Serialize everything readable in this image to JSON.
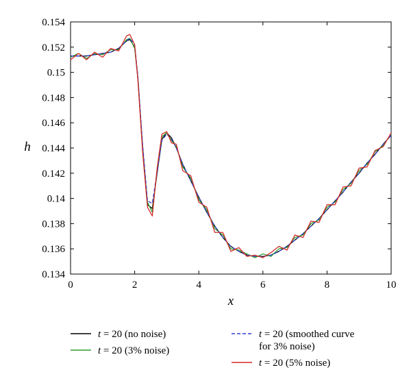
{
  "chart_data": {
    "type": "line",
    "xlabel": "x",
    "ylabel": "h",
    "xlim": [
      0,
      10
    ],
    "ylim": [
      0.134,
      0.154
    ],
    "x_ticks": [
      0,
      2,
      4,
      6,
      8,
      10
    ],
    "x_tick_labels": [
      "0",
      "2",
      "4",
      "6",
      "8",
      "10"
    ],
    "y_ticks": [
      0.134,
      0.136,
      0.138,
      0.14,
      0.142,
      0.144,
      0.146,
      0.148,
      0.15,
      0.152,
      0.154
    ],
    "y_tick_labels": [
      "0.134",
      "0.136",
      "0.138",
      "0.14",
      "0.142",
      "0.144",
      "0.146",
      "0.148",
      "0.15",
      "0.152",
      "0.154"
    ],
    "grid": false,
    "legend_position": "bottom",
    "x": [
      0,
      0.25,
      0.5,
      0.75,
      1.0,
      1.25,
      1.5,
      1.75,
      1.85,
      2.0,
      2.1,
      2.25,
      2.4,
      2.55,
      2.7,
      2.85,
      3.0,
      3.15,
      3.3,
      3.5,
      3.75,
      4.0,
      4.25,
      4.5,
      4.75,
      5.0,
      5.25,
      5.5,
      5.75,
      6.0,
      6.25,
      6.5,
      6.75,
      7.0,
      7.25,
      7.5,
      7.75,
      8.0,
      8.25,
      8.5,
      8.75,
      9.0,
      9.25,
      9.5,
      9.75,
      10.0
    ],
    "series": [
      {
        "name": "t = 20 (no noise)",
        "color": "#000000",
        "style": "solid",
        "values": [
          0.1513,
          0.1513,
          0.1513,
          0.1514,
          0.1515,
          0.1516,
          0.1519,
          0.1525,
          0.1526,
          0.152,
          0.1495,
          0.144,
          0.1395,
          0.1392,
          0.142,
          0.1447,
          0.1452,
          0.1448,
          0.144,
          0.1427,
          0.1414,
          0.1401,
          0.1389,
          0.1378,
          0.1369,
          0.1362,
          0.1358,
          0.1355,
          0.1354,
          0.1354,
          0.1355,
          0.1358,
          0.1362,
          0.1367,
          0.1372,
          0.1378,
          0.1384,
          0.1391,
          0.1398,
          0.1405,
          0.1413,
          0.142,
          0.1428,
          0.1435,
          0.1443,
          0.145
        ]
      },
      {
        "name": "t = 20 (3% noise)",
        "color": "#2e9e2e",
        "style": "solid",
        "values": [
          0.1512,
          0.1515,
          0.1511,
          0.1515,
          0.1514,
          0.1518,
          0.1518,
          0.1526,
          0.1527,
          0.1519,
          0.1496,
          0.1438,
          0.1397,
          0.1389,
          0.1422,
          0.1449,
          0.1452,
          0.1446,
          0.1441,
          0.1425,
          0.1416,
          0.1399,
          0.1391,
          0.1376,
          0.1371,
          0.136,
          0.1359,
          0.1356,
          0.1353,
          0.1356,
          0.1354,
          0.136,
          0.1361,
          0.1369,
          0.1371,
          0.138,
          0.1383,
          0.1393,
          0.1397,
          0.1407,
          0.1412,
          0.1422,
          0.1427,
          0.1437,
          0.1442,
          0.1451
        ]
      },
      {
        "name": "t = 20 (smoothed curve for 3% noise)",
        "color": "#2f3fd6",
        "style": "dashed",
        "values": [
          0.1513,
          0.1513,
          0.1513,
          0.1514,
          0.1515,
          0.1516,
          0.1519,
          0.1525,
          0.1527,
          0.1522,
          0.1497,
          0.1442,
          0.1398,
          0.1396,
          0.1421,
          0.1446,
          0.1451,
          0.1447,
          0.144,
          0.1427,
          0.1414,
          0.1401,
          0.1389,
          0.1378,
          0.1369,
          0.1362,
          0.1358,
          0.1355,
          0.1354,
          0.1354,
          0.1355,
          0.1358,
          0.1362,
          0.1367,
          0.1372,
          0.1378,
          0.1384,
          0.1391,
          0.1398,
          0.1405,
          0.1413,
          0.142,
          0.1428,
          0.1435,
          0.1443,
          0.145
        ]
      },
      {
        "name": "t = 20 (5% noise)",
        "color": "#d42a2a",
        "style": "solid",
        "values": [
          0.151,
          0.1515,
          0.151,
          0.1516,
          0.1512,
          0.1519,
          0.1517,
          0.1529,
          0.153,
          0.1522,
          0.1494,
          0.1436,
          0.1393,
          0.1386,
          0.1424,
          0.1451,
          0.1453,
          0.1444,
          0.1443,
          0.1422,
          0.1418,
          0.1397,
          0.1393,
          0.1373,
          0.1373,
          0.1358,
          0.1361,
          0.1354,
          0.1355,
          0.1353,
          0.1357,
          0.1362,
          0.1359,
          0.1371,
          0.1369,
          0.1382,
          0.1381,
          0.1395,
          0.1395,
          0.1409,
          0.141,
          0.1424,
          0.1425,
          0.1438,
          0.1441,
          0.1452
        ]
      }
    ],
    "legend": [
      {
        "prefix": "t",
        "text": " = 20 (no noise)",
        "color": "#000000",
        "style": "solid"
      },
      {
        "prefix": "t",
        "text": " = 20 (3% noise)",
        "color": "#2e9e2e",
        "style": "solid"
      },
      {
        "prefix": "t",
        "text": " = 20 (smoothed curve",
        "line2": "for 3% noise)",
        "color": "#2f3fd6",
        "style": "dashed"
      },
      {
        "prefix": "t",
        "text": " = 20 (5% noise)",
        "color": "#d42a2a",
        "style": "solid"
      }
    ]
  }
}
